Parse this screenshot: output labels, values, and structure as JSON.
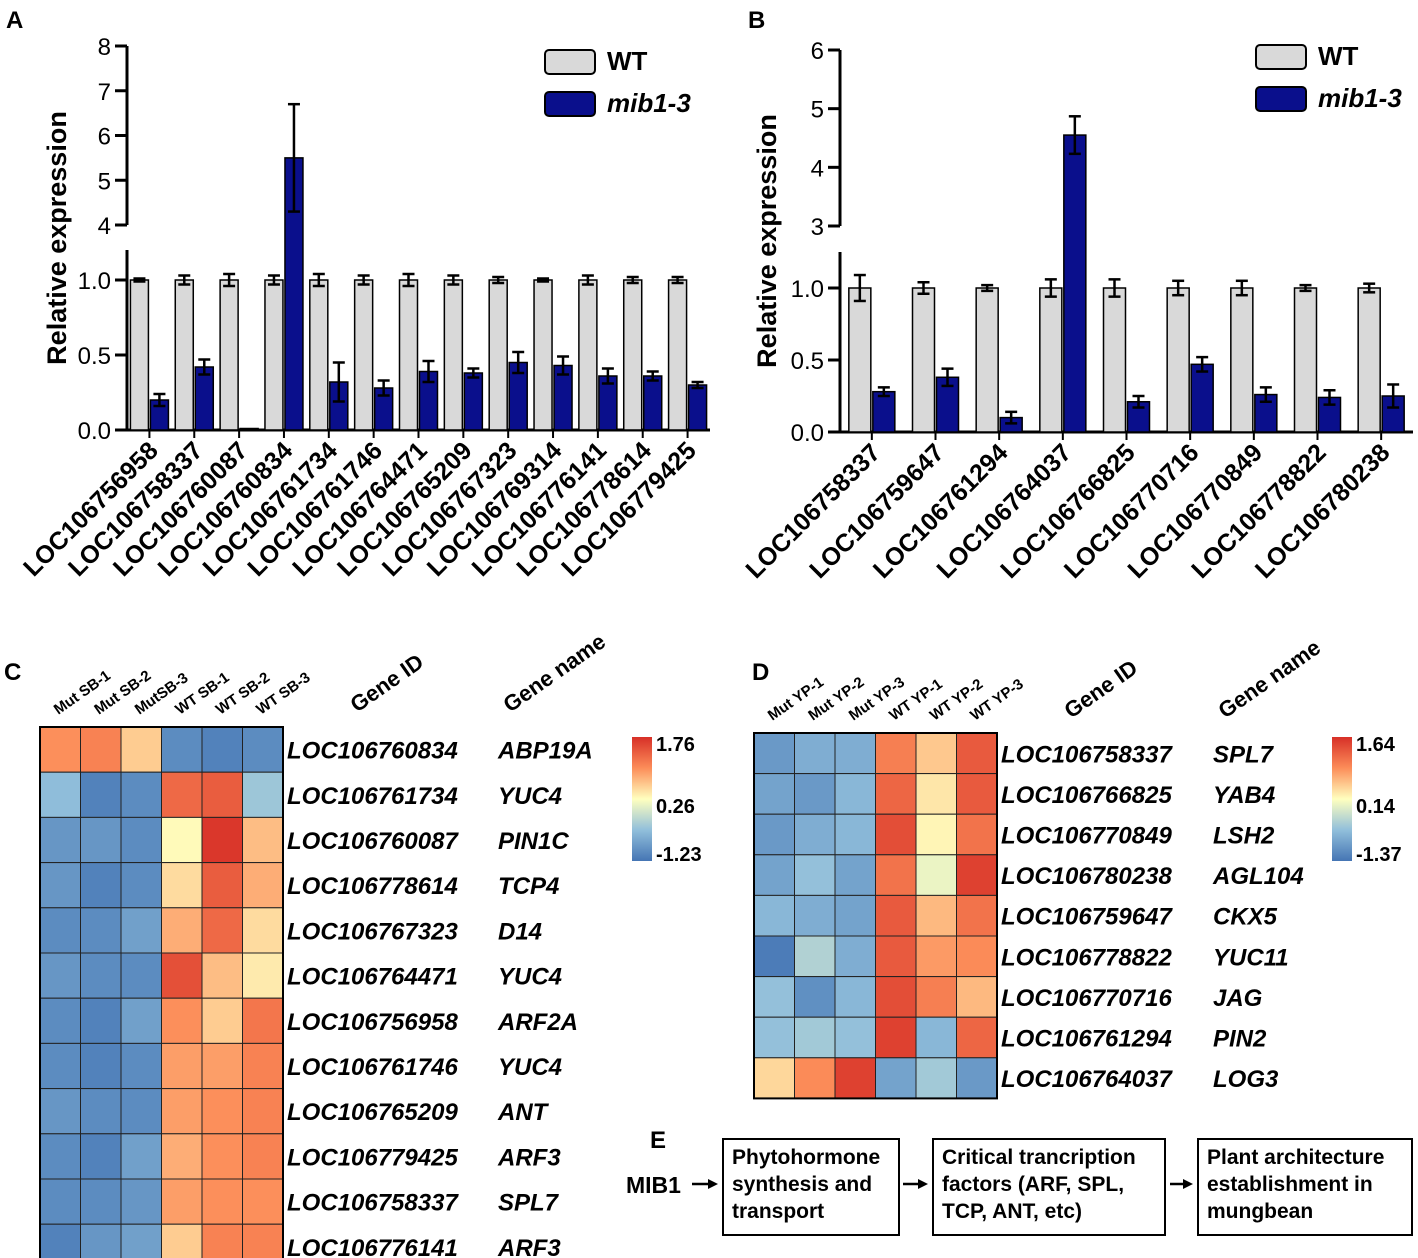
{
  "panels": {
    "A": "A",
    "B": "B",
    "C": "C",
    "D": "D",
    "E": "E"
  },
  "chart_data": [
    {
      "panel": "A",
      "type": "bar",
      "ylabel": "Relative expression",
      "ylim": [
        0,
        8
      ],
      "axis_break": [
        1.2,
        4
      ],
      "yticks": [
        "0.0",
        "0.5",
        "1.0",
        "4",
        "5",
        "6",
        "7",
        "8"
      ],
      "legend": [
        "WT",
        "mib1-3"
      ],
      "categories": [
        "LOC106756958",
        "LOC106758337",
        "LOC106760087",
        "LOC106760834",
        "LOC106761734",
        "LOC106761746",
        "LOC106764471",
        "LOC106765209",
        "LOC106767323",
        "LOC106769314",
        "LOC106776141",
        "LOC106778614",
        "LOC106779425"
      ],
      "series": [
        {
          "name": "WT",
          "color": "#d9d9d9",
          "values": [
            1,
            1,
            1,
            1,
            1,
            1,
            1,
            1,
            1,
            1,
            1,
            1,
            1
          ],
          "errors": [
            0.01,
            0.03,
            0.04,
            0.03,
            0.04,
            0.03,
            0.04,
            0.03,
            0.02,
            0.01,
            0.03,
            0.02,
            0.02
          ]
        },
        {
          "name": "mib1-3",
          "color": "#0a0f8c",
          "values": [
            0.2,
            0.42,
            0.01,
            5.5,
            0.32,
            0.28,
            0.39,
            0.38,
            0.45,
            0.43,
            0.36,
            0.36,
            0.3
          ],
          "errors": [
            0.04,
            0.05,
            0,
            1.2,
            0.13,
            0.05,
            0.07,
            0.03,
            0.07,
            0.06,
            0.05,
            0.03,
            0.02
          ]
        }
      ]
    },
    {
      "panel": "B",
      "type": "bar",
      "ylabel": "Relative expression",
      "ylim": [
        0,
        6
      ],
      "axis_break": [
        1.25,
        3
      ],
      "yticks": [
        "0.0",
        "0.5",
        "1.0",
        "3",
        "4",
        "5",
        "6"
      ],
      "legend": [
        "WT",
        "mib1-3"
      ],
      "categories": [
        "LOC106758337",
        "LOC106759647",
        "LOC106761294",
        "LOC106764037",
        "LOC106766825",
        "LOC106770716",
        "LOC106770849",
        "LOC106778822",
        "LOC106780238"
      ],
      "series": [
        {
          "name": "WT",
          "color": "#d9d9d9",
          "values": [
            1,
            1,
            1,
            1,
            1,
            1,
            1,
            1,
            1
          ],
          "errors": [
            0.09,
            0.04,
            0.02,
            0.06,
            0.06,
            0.05,
            0.05,
            0.02,
            0.03
          ]
        },
        {
          "name": "mib1-3",
          "color": "#0a0f8c",
          "values": [
            0.28,
            0.38,
            0.1,
            4.55,
            0.21,
            0.47,
            0.26,
            0.24,
            0.25
          ],
          "errors": [
            0.03,
            0.06,
            0.04,
            0.32,
            0.04,
            0.05,
            0.05,
            0.05,
            0.08
          ]
        }
      ]
    },
    {
      "panel": "C",
      "type": "heatmap",
      "columns": [
        "Mut SB-1",
        "Mut SB-2",
        "MutSB-3",
        "WT SB-1",
        "WT SB-2",
        "WT SB-3"
      ],
      "header_gene_id": "Gene ID",
      "header_gene_name": "Gene name",
      "legend": [
        "1.76",
        "0.26",
        "-1.23"
      ],
      "vmin": -1.23,
      "vmax": 1.76,
      "rows": [
        {
          "gene_id": "LOC106760834",
          "gene_name": "ABP19A",
          "values": [
            1.0,
            1.1,
            0.6,
            -1.0,
            -1.1,
            -1.0
          ]
        },
        {
          "gene_id": "LOC106761734",
          "gene_name": "YUC4",
          "values": [
            -0.5,
            -1.1,
            -1.0,
            1.3,
            1.4,
            -0.4
          ]
        },
        {
          "gene_id": "LOC106760087",
          "gene_name": "PIN1C",
          "values": [
            -0.9,
            -0.9,
            -1.0,
            0.3,
            1.7,
            0.7
          ]
        },
        {
          "gene_id": "LOC106778614",
          "gene_name": "TCP4",
          "values": [
            -0.9,
            -1.1,
            -1.0,
            0.5,
            1.4,
            0.8
          ]
        },
        {
          "gene_id": "LOC106767323",
          "gene_name": "D14",
          "values": [
            -1.0,
            -1.0,
            -0.8,
            0.8,
            1.3,
            0.5
          ]
        },
        {
          "gene_id": "LOC106764471",
          "gene_name": "YUC4",
          "values": [
            -0.9,
            -1.0,
            -1.0,
            1.5,
            0.7,
            0.4
          ]
        },
        {
          "gene_id": "LOC106756958",
          "gene_name": "ARF2A",
          "values": [
            -1.0,
            -1.1,
            -0.8,
            1.0,
            0.6,
            1.2
          ]
        },
        {
          "gene_id": "LOC106761746",
          "gene_name": "YUC4",
          "values": [
            -1.0,
            -1.1,
            -1.0,
            0.9,
            0.9,
            1.1
          ]
        },
        {
          "gene_id": "LOC106765209",
          "gene_name": "ANT",
          "values": [
            -0.9,
            -1.0,
            -1.0,
            0.9,
            1.0,
            1.1
          ]
        },
        {
          "gene_id": "LOC106779425",
          "gene_name": "ARF3",
          "values": [
            -1.0,
            -1.1,
            -0.8,
            0.8,
            1.0,
            1.1
          ]
        },
        {
          "gene_id": "LOC106758337",
          "gene_name": "SPL7",
          "values": [
            -1.0,
            -1.0,
            -0.9,
            0.9,
            1.0,
            1.0
          ]
        },
        {
          "gene_id": "LOC106776141",
          "gene_name": "ARF3",
          "values": [
            -1.1,
            -0.9,
            -0.8,
            0.6,
            1.1,
            1.1
          ]
        }
      ]
    },
    {
      "panel": "D",
      "type": "heatmap",
      "columns": [
        "Mut YP-1",
        "Mut YP-2",
        "Mut YP-3",
        "WT YP-1",
        "WT YP-2",
        "WT YP-3"
      ],
      "header_gene_id": "Gene ID",
      "header_gene_name": "Gene name",
      "legend": [
        "1.64",
        "0.14",
        "-1.37"
      ],
      "vmin": -1.37,
      "vmax": 1.64,
      "rows": [
        {
          "gene_id": "LOC106758337",
          "gene_name": "SPL7",
          "values": [
            -1.0,
            -0.8,
            -0.8,
            1.0,
            0.5,
            1.3
          ]
        },
        {
          "gene_id": "LOC106766825",
          "gene_name": "YAB4",
          "values": [
            -0.9,
            -1.0,
            -0.7,
            1.2,
            0.3,
            1.3
          ]
        },
        {
          "gene_id": "LOC106770849",
          "gene_name": "LSH2",
          "values": [
            -1.0,
            -0.8,
            -0.7,
            1.4,
            0.2,
            1.1
          ]
        },
        {
          "gene_id": "LOC106780238",
          "gene_name": "AGL104",
          "values": [
            -0.9,
            -0.6,
            -0.9,
            1.1,
            0.0,
            1.5
          ]
        },
        {
          "gene_id": "LOC106759647",
          "gene_name": "CKX5",
          "values": [
            -0.7,
            -0.8,
            -0.9,
            1.3,
            0.6,
            1.1
          ]
        },
        {
          "gene_id": "LOC106778822",
          "gene_name": "YUC11",
          "values": [
            -1.3,
            -0.4,
            -0.8,
            1.3,
            0.8,
            0.9
          ]
        },
        {
          "gene_id": "LOC106770716",
          "gene_name": "JAG",
          "values": [
            -0.6,
            -1.1,
            -0.7,
            1.4,
            1.0,
            0.6
          ]
        },
        {
          "gene_id": "LOC106761294",
          "gene_name": "PIN2",
          "values": [
            -0.6,
            -0.5,
            -0.6,
            1.5,
            -0.7,
            1.2
          ]
        },
        {
          "gene_id": "LOC106764037",
          "gene_name": "LOG3",
          "values": [
            0.4,
            0.9,
            1.5,
            -0.9,
            -0.5,
            -1.0
          ]
        }
      ]
    }
  ],
  "pathway": {
    "start": "MIB1",
    "steps": [
      "Phytohormone synthesis and transport",
      "Critical trancription factors (ARF, SPL, TCP,  ANT, etc)",
      "Plant architecture establishment  in mungbean"
    ]
  }
}
